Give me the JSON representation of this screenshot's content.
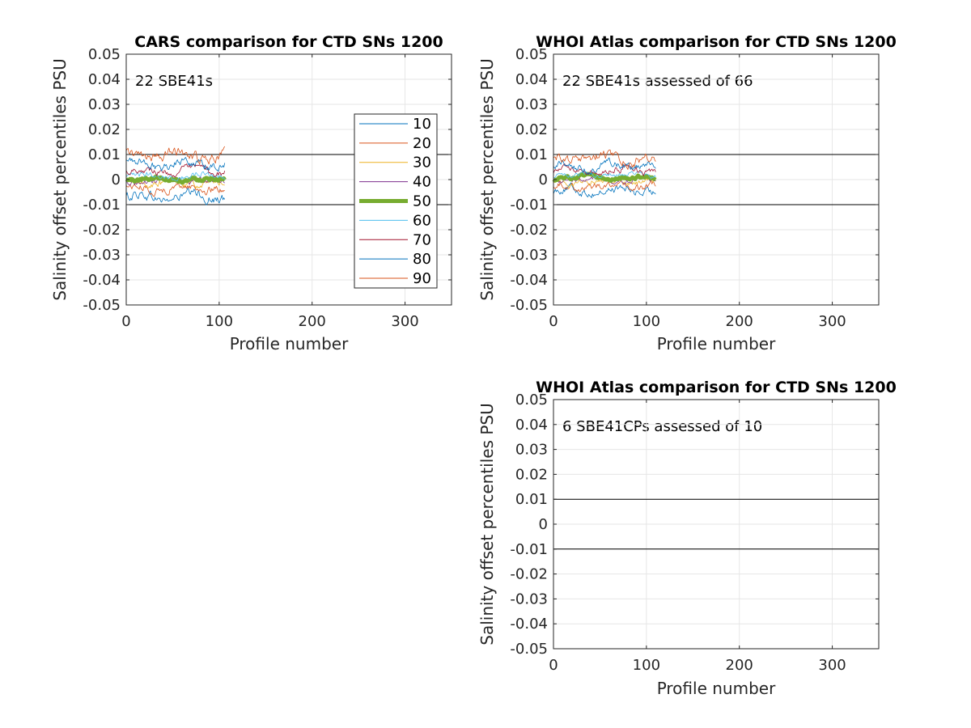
{
  "chart_data": [
    {
      "type": "line",
      "title": "CARS comparison for CTD SNs 1200",
      "xlabel": "Profile number",
      "ylabel": "Salinity offset percentiles PSU",
      "xlim": [
        0,
        350
      ],
      "ylim": [
        -0.05,
        0.05
      ],
      "xticks": [
        "0",
        "100",
        "200",
        "300"
      ],
      "yticks": [
        "-0.05",
        "-0.04",
        "-0.03",
        "-0.02",
        "-0.01",
        "0",
        "0.01",
        "0.02",
        "0.03",
        "0.04",
        "0.05"
      ],
      "grid": true,
      "annotation": "22 SBE41s",
      "reference_lines": [
        0.01,
        -0.01
      ],
      "legend": {
        "placement": "right",
        "entries": [
          "10",
          "20",
          "30",
          "40",
          "50",
          "60",
          "70",
          "80",
          "90"
        ]
      },
      "x_range": [
        0,
        106
      ],
      "series": [
        {
          "name": "10",
          "color": "#0072BD",
          "center": -0.007,
          "amp": 0.0025
        },
        {
          "name": "20",
          "color": "#D95319",
          "center": -0.0035,
          "amp": 0.002
        },
        {
          "name": "30",
          "color": "#EDB120",
          "center": -0.0015,
          "amp": 0.0018
        },
        {
          "name": "40",
          "color": "#7E2F8E",
          "center": -0.0005,
          "amp": 0.0015
        },
        {
          "name": "50",
          "color": "#77AC30",
          "center": 0.0003,
          "amp": 0.001
        },
        {
          "name": "60",
          "color": "#4DBEEE",
          "center": 0.0015,
          "amp": 0.0015
        },
        {
          "name": "70",
          "color": "#A2142F",
          "center": 0.0035,
          "amp": 0.0018
        },
        {
          "name": "80",
          "color": "#0072BD",
          "center": 0.0065,
          "amp": 0.0022
        },
        {
          "name": "90",
          "color": "#D95319",
          "center": 0.0095,
          "amp": 0.0025
        }
      ]
    },
    {
      "type": "line",
      "title": "WHOI Atlas comparison for CTD SNs 1200",
      "xlabel": "Profile number",
      "ylabel": "Salinity offset percentiles PSU",
      "xlim": [
        0,
        350
      ],
      "ylim": [
        -0.05,
        0.05
      ],
      "xticks": [
        "0",
        "100",
        "200",
        "300"
      ],
      "yticks": [
        "-0.05",
        "-0.04",
        "-0.03",
        "-0.02",
        "-0.01",
        "0",
        "0.01",
        "0.02",
        "0.03",
        "0.04",
        "0.05"
      ],
      "grid": true,
      "annotation": "22 SBE41s assessed of 66",
      "reference_lines": [
        0.01,
        -0.01
      ],
      "x_range": [
        0,
        110
      ],
      "series": [
        {
          "name": "10",
          "color": "#0072BD",
          "center": -0.0045,
          "amp": 0.002
        },
        {
          "name": "20",
          "color": "#D95319",
          "center": -0.0025,
          "amp": 0.0018
        },
        {
          "name": "30",
          "color": "#EDB120",
          "center": -0.001,
          "amp": 0.0015
        },
        {
          "name": "40",
          "color": "#7E2F8E",
          "center": 0.0,
          "amp": 0.0012
        },
        {
          "name": "50",
          "color": "#77AC30",
          "center": 0.0008,
          "amp": 0.0008
        },
        {
          "name": "60",
          "color": "#4DBEEE",
          "center": 0.0018,
          "amp": 0.0012
        },
        {
          "name": "70",
          "color": "#A2142F",
          "center": 0.0035,
          "amp": 0.0016
        },
        {
          "name": "80",
          "color": "#0072BD",
          "center": 0.0055,
          "amp": 0.002
        },
        {
          "name": "90",
          "color": "#D95319",
          "center": 0.0085,
          "amp": 0.0025
        }
      ]
    },
    {
      "type": "line",
      "title": "WHOI Atlas comparison for CTD SNs 1200",
      "xlabel": "Profile number",
      "ylabel": "Salinity offset percentiles PSU",
      "xlim": [
        0,
        350
      ],
      "ylim": [
        -0.05,
        0.05
      ],
      "xticks": [
        "0",
        "100",
        "200",
        "300"
      ],
      "yticks": [
        "-0.05",
        "-0.04",
        "-0.03",
        "-0.02",
        "-0.01",
        "0",
        "0.01",
        "0.02",
        "0.03",
        "0.04",
        "0.05"
      ],
      "grid": true,
      "annotation": "6 SBE41CPs assessed of 10",
      "reference_lines": [
        0.01,
        -0.01
      ],
      "series": []
    }
  ]
}
